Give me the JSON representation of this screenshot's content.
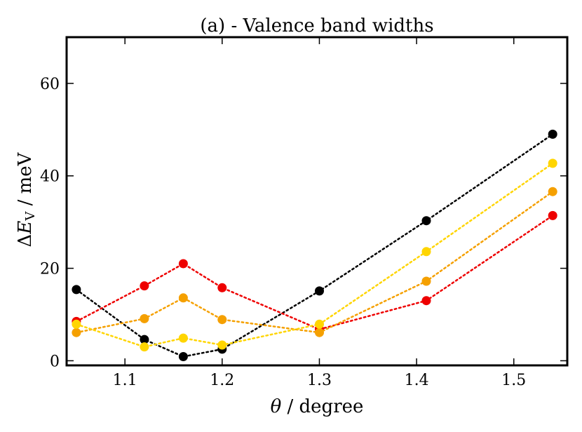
{
  "chart_data": {
    "type": "line",
    "title": "(a) - Valence band widths",
    "xlabel": "θ / degree",
    "ylabel": "ΔE_V / meV",
    "ylabel_parts": {
      "delta": "Δ",
      "symbol": "E",
      "subscript": "V",
      "unit": " / meV"
    },
    "xlabel_parts": {
      "symbol": "θ",
      "unit": " / degree"
    },
    "xlim": [
      1.04,
      1.555
    ],
    "ylim": [
      -1,
      70
    ],
    "xticks": [
      1.1,
      1.2,
      1.3,
      1.4,
      1.5
    ],
    "xtick_labels": [
      "1.1",
      "1.2",
      "1.3",
      "1.4",
      "1.5"
    ],
    "yticks": [
      0,
      20,
      40,
      60
    ],
    "ytick_labels": [
      "0",
      "20",
      "40",
      "60"
    ],
    "grid": false,
    "marker": "circle",
    "line_style": "dotted",
    "series": [
      {
        "name": "black",
        "color": "#000000",
        "x": [
          1.05,
          1.12,
          1.16,
          1.2,
          1.3,
          1.41,
          1.54
        ],
        "values": [
          15.4,
          4.6,
          0.9,
          2.5,
          15.1,
          30.3,
          49.0
        ]
      },
      {
        "name": "red",
        "color": "#ee0000",
        "x": [
          1.05,
          1.12,
          1.16,
          1.2,
          1.3,
          1.41,
          1.54
        ],
        "values": [
          8.5,
          16.2,
          21.0,
          15.8,
          6.8,
          13.0,
          31.4
        ]
      },
      {
        "name": "orange",
        "color": "#f5a000",
        "x": [
          1.05,
          1.12,
          1.16,
          1.2,
          1.3,
          1.41,
          1.54
        ],
        "values": [
          6.1,
          9.1,
          13.6,
          8.9,
          6.1,
          17.2,
          36.6
        ]
      },
      {
        "name": "yellow",
        "color": "#ffd500",
        "x": [
          1.05,
          1.12,
          1.16,
          1.2,
          1.3,
          1.41,
          1.54
        ],
        "values": [
          7.9,
          3.0,
          4.9,
          3.4,
          7.9,
          23.6,
          42.7
        ]
      }
    ]
  }
}
